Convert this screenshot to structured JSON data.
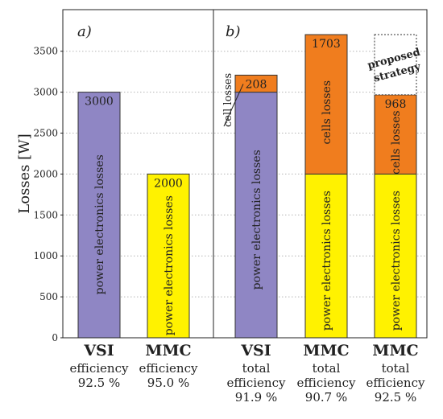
{
  "chart_data": {
    "type": "bar",
    "stacked": true,
    "ylabel": "Losses [W]",
    "ylim": [
      0,
      4000
    ],
    "yticks": [
      0,
      500,
      1000,
      1500,
      2000,
      2500,
      3000,
      3500
    ],
    "grid": true,
    "colors": {
      "power_electronics_vsi": "#8f86c4",
      "power_electronics_mmc": "#fff200",
      "cells": "#f07d1e"
    },
    "panels": [
      {
        "label": "a)",
        "bars": [
          {
            "name": "VSI",
            "caption": [
              "efficiency",
              "92.5 %"
            ],
            "segments": [
              {
                "series": "power electronics losses",
                "value": 3000,
                "color": "#8f86c4",
                "value_label": "3000",
                "inner_label": "power electronics losses"
              }
            ]
          },
          {
            "name": "MMC",
            "caption": [
              "efficiency",
              "95.0 %"
            ],
            "segments": [
              {
                "series": "power electronics losses",
                "value": 2000,
                "color": "#fff200",
                "value_label": "2000",
                "inner_label": "power electronics losses"
              }
            ]
          }
        ]
      },
      {
        "label": "b)",
        "bars": [
          {
            "name": "VSI",
            "caption": [
              "total",
              "efficiency",
              "91.9 %"
            ],
            "segments": [
              {
                "series": "power electronics losses",
                "value": 3000,
                "color": "#8f86c4",
                "value_label": "",
                "inner_label": "power electronics losses"
              },
              {
                "series": "cell losses",
                "value": 208,
                "color": "#f07d1e",
                "value_label": "208",
                "inner_label": ""
              }
            ],
            "callout": "cell losses"
          },
          {
            "name": "MMC",
            "caption": [
              "total",
              "efficiency",
              "90.7 %"
            ],
            "segments": [
              {
                "series": "power electronics losses",
                "value": 2000,
                "color": "#fff200",
                "value_label": "",
                "inner_label": "power electronics losses"
              },
              {
                "series": "cells losses",
                "value": 1703,
                "color": "#f07d1e",
                "value_label": "1703",
                "inner_label": "cells losses"
              }
            ]
          },
          {
            "name": "MMC",
            "caption": [
              "total",
              "efficiency",
              "92.5 %"
            ],
            "segments": [
              {
                "series": "power electronics losses",
                "value": 2000,
                "color": "#fff200",
                "value_label": "",
                "inner_label": "power electronics losses"
              },
              {
                "series": "cells losses",
                "value": 968,
                "color": "#f07d1e",
                "value_label": "968",
                "inner_label": "cells losses"
              }
            ],
            "reduction": {
              "value": 735,
              "label": [
                "proposed",
                "strategy"
              ]
            }
          }
        ]
      }
    ]
  }
}
